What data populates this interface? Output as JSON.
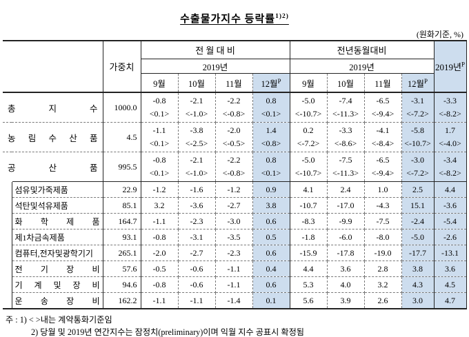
{
  "title": {
    "text": "수출물가지수 등락률",
    "sup": "1)2)"
  },
  "unit_note": "(원화기준, %)",
  "colors": {
    "highlight": "#cdddee",
    "line_solid": "#222222",
    "line_dashed": "#777777"
  },
  "table": {
    "header": {
      "weight": "가중치",
      "group_mom": "전 월 대 비",
      "group_yoy": "전년동월대비",
      "sub_year": "2019년",
      "months": [
        "9월",
        "10월",
        "11월",
        "12월"
      ],
      "prelim_mark": "P",
      "annual_year": "2019년"
    },
    "rows": [
      {
        "type": "main",
        "label": "총 지 수",
        "weight": "1000.0",
        "mom": [
          "-0.8",
          "-2.1",
          "-2.2",
          "0.8"
        ],
        "mom_c": [
          "<0.1>",
          "<-1.0>",
          "<-0.8>",
          "<0.1>"
        ],
        "yoy": [
          "-5.0",
          "-7.4",
          "-6.5",
          "-3.1"
        ],
        "yoy_c": [
          "<-10.7>",
          "<-11.3>",
          "<-9.4>",
          "<-7.2>"
        ],
        "annual": "-3.3",
        "annual_c": "<-8.2>"
      },
      {
        "type": "main",
        "label": "농 림 수 산 품",
        "weight": "4.5",
        "mom": [
          "-1.1",
          "-3.8",
          "-2.0",
          "1.4"
        ],
        "mom_c": [
          "<0.1>",
          "<-2.5>",
          "<-0.5>",
          "<0.8>"
        ],
        "yoy": [
          "0.2",
          "-3.3",
          "-4.1",
          "-5.8"
        ],
        "yoy_c": [
          "<-7.2>",
          "<-8.6>",
          "<-8.4>",
          "<-10.7>"
        ],
        "annual": "1.7",
        "annual_c": "<-4.0>"
      },
      {
        "type": "main",
        "label": "공 산 품",
        "weight": "995.5",
        "mom": [
          "-0.8",
          "-2.1",
          "-2.2",
          "0.8"
        ],
        "mom_c": [
          "<0.1>",
          "<-1.0>",
          "<-0.8>",
          "<0.1>"
        ],
        "yoy": [
          "-5.0",
          "-7.5",
          "-6.5",
          "-3.0"
        ],
        "yoy_c": [
          "<-10.7>",
          "<-11.3>",
          "<-9.4>",
          "<-7.2>"
        ],
        "annual": "-3.4",
        "annual_c": "<-8.2>"
      },
      {
        "type": "sub",
        "label": "섬유및가죽제품",
        "weight": "22.9",
        "mom": [
          "-1.2",
          "-1.6",
          "-1.2",
          "0.9"
        ],
        "yoy": [
          "4.1",
          "2.4",
          "1.0",
          "2.5"
        ],
        "annual": "4.4"
      },
      {
        "type": "sub",
        "label": "석탄및석유제품",
        "weight": "85.1",
        "mom": [
          "3.2",
          "-3.6",
          "-2.7",
          "3.8"
        ],
        "yoy": [
          "-10.7",
          "-17.0",
          "-4.3",
          "15.1"
        ],
        "annual": "-3.6"
      },
      {
        "type": "sub",
        "label": "화 학 제 품",
        "weight": "164.7",
        "mom": [
          "-1.1",
          "-2.3",
          "-3.0",
          "0.6"
        ],
        "yoy": [
          "-8.3",
          "-9.9",
          "-7.5",
          "-2.4"
        ],
        "annual": "-5.4"
      },
      {
        "type": "sub",
        "label": "제1차금속제품",
        "weight": "93.1",
        "mom": [
          "-0.8",
          "-3.1",
          "-3.5",
          "0.5"
        ],
        "yoy": [
          "-1.8",
          "-6.0",
          "-8.0",
          "-5.0"
        ],
        "annual": "-2.6"
      },
      {
        "type": "sub",
        "label": "컴퓨터,전자및광학기기",
        "weight": "265.1",
        "mom": [
          "-2.0",
          "-2.7",
          "-2.3",
          "0.6"
        ],
        "yoy": [
          "-15.9",
          "-17.8",
          "-19.0",
          "-17.7"
        ],
        "annual": "-13.1"
      },
      {
        "type": "sub",
        "label": "전 기 장 비",
        "weight": "57.6",
        "mom": [
          "-0.5",
          "-0.6",
          "-1.1",
          "0.4"
        ],
        "yoy": [
          "4.4",
          "3.6",
          "2.8",
          "3.8"
        ],
        "annual": "3.6"
      },
      {
        "type": "sub",
        "label": "기 계 및 장 비",
        "weight": "94.6",
        "mom": [
          "-0.8",
          "-0.6",
          "-1.1",
          "0.6"
        ],
        "yoy": [
          "5.3",
          "4.0",
          "3.2",
          "4.3"
        ],
        "annual": "4.5"
      },
      {
        "type": "sub",
        "label": "운 송 장 비",
        "weight": "162.2",
        "mom": [
          "-1.1",
          "-1.1",
          "-1.4",
          "0.1"
        ],
        "yoy": [
          "5.6",
          "3.9",
          "2.6",
          "3.0"
        ],
        "annual": "4.7"
      }
    ]
  },
  "notes": {
    "prefix": "주 :",
    "items": [
      "1) < >내는 계약통화기준임",
      "2) 당월 및 2019년 연간지수는 잠정치(preliminary)이며 익월 지수 공표시 확정됨"
    ]
  }
}
